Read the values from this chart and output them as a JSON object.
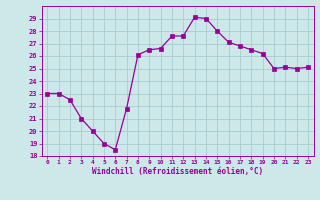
{
  "x": [
    0,
    1,
    2,
    3,
    4,
    5,
    6,
    7,
    8,
    9,
    10,
    11,
    12,
    13,
    14,
    15,
    16,
    17,
    18,
    19,
    20,
    21,
    22,
    23
  ],
  "y": [
    23,
    23,
    22.5,
    21,
    20,
    19,
    18.5,
    21.8,
    26.1,
    26.5,
    26.6,
    27.6,
    27.6,
    29.1,
    29.0,
    28.0,
    27.1,
    26.8,
    26.5,
    26.2,
    25.0,
    25.1,
    25.0,
    25.1
  ],
  "line_color": "#990099",
  "marker_color": "#990099",
  "bg_color": "#cce8e8",
  "grid_color": "#aacccc",
  "xlabel": "Windchill (Refroidissement éolien,°C)",
  "ylim": [
    18,
    30
  ],
  "yticks": [
    18,
    19,
    20,
    21,
    22,
    23,
    24,
    25,
    26,
    27,
    28,
    29
  ],
  "xticks": [
    0,
    1,
    2,
    3,
    4,
    5,
    6,
    7,
    8,
    9,
    10,
    11,
    12,
    13,
    14,
    15,
    16,
    17,
    18,
    19,
    20,
    21,
    22,
    23
  ],
  "xtick_labels": [
    "0",
    "1",
    "2",
    "3",
    "4",
    "5",
    "6",
    "7",
    "8",
    "9",
    "10",
    "11",
    "12",
    "13",
    "14",
    "15",
    "16",
    "17",
    "18",
    "19",
    "20",
    "21",
    "22",
    "23"
  ],
  "label_color": "#990099",
  "tick_color": "#990099",
  "axis_color": "#990099"
}
